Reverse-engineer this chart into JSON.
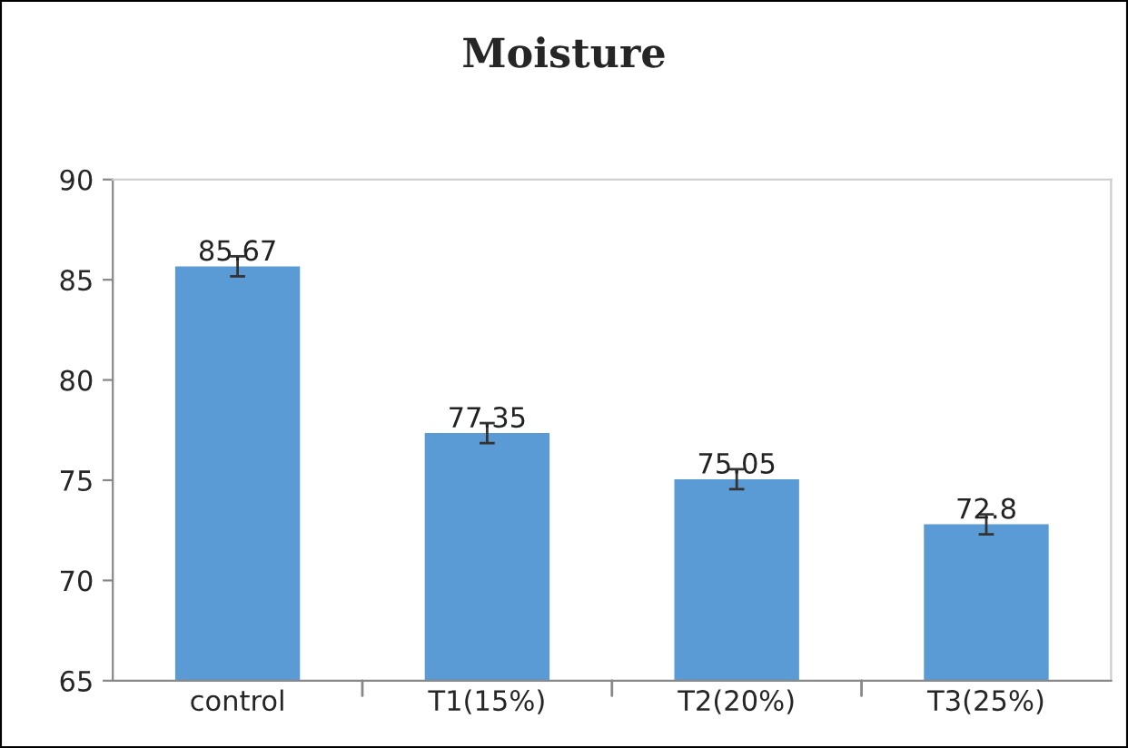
{
  "chart_data": {
    "type": "bar",
    "title": "Moisture",
    "categories": [
      "control",
      "T1(15%)",
      "T2(20%)",
      "T3(25%)"
    ],
    "values": [
      85.67,
      77.35,
      75.05,
      72.8
    ],
    "errors": [
      0.5,
      0.5,
      0.5,
      0.5
    ],
    "color": "#5b9bd5",
    "ylim": [
      65,
      90
    ],
    "yticks": [
      65,
      70,
      75,
      80,
      85,
      90
    ],
    "data_labels": true,
    "grid": false,
    "legend": false
  }
}
